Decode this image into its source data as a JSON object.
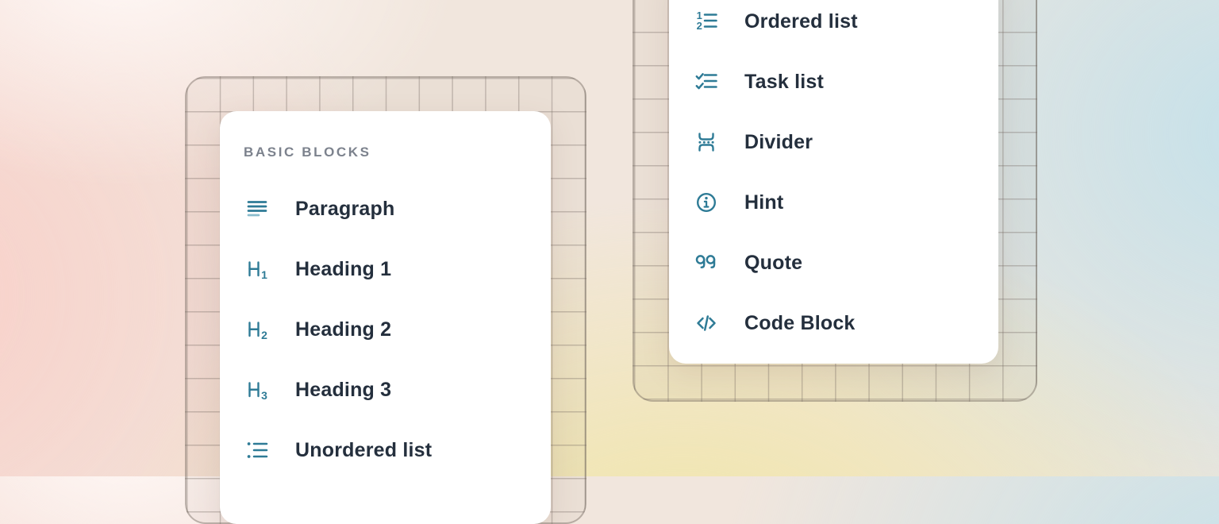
{
  "colors": {
    "icon_teal": "#2e7b96",
    "icon_teal_light": "#8abccd",
    "label_text": "#242f3d",
    "section_label_text": "#7c828d",
    "card_background": "#ffffff",
    "background_pink": "#f9cfc8",
    "background_yellow": "#f1e6a8",
    "background_blue": "#c5e1ea"
  },
  "left_menu": {
    "section_label": "BASIC BLOCKS",
    "items": [
      {
        "label": "Paragraph",
        "icon": "paragraph-icon"
      },
      {
        "label": "Heading 1",
        "icon": "heading-1-icon"
      },
      {
        "label": "Heading 2",
        "icon": "heading-2-icon"
      },
      {
        "label": "Heading 3",
        "icon": "heading-3-icon"
      },
      {
        "label": "Unordered list",
        "icon": "unordered-list-icon"
      }
    ]
  },
  "right_menu": {
    "items": [
      {
        "label": "Ordered list",
        "icon": "ordered-list-icon"
      },
      {
        "label": "Task list",
        "icon": "task-list-icon"
      },
      {
        "label": "Divider",
        "icon": "divider-icon"
      },
      {
        "label": "Hint",
        "icon": "hint-icon"
      },
      {
        "label": "Quote",
        "icon": "quote-icon"
      },
      {
        "label": "Code Block",
        "icon": "code-block-icon"
      }
    ]
  }
}
